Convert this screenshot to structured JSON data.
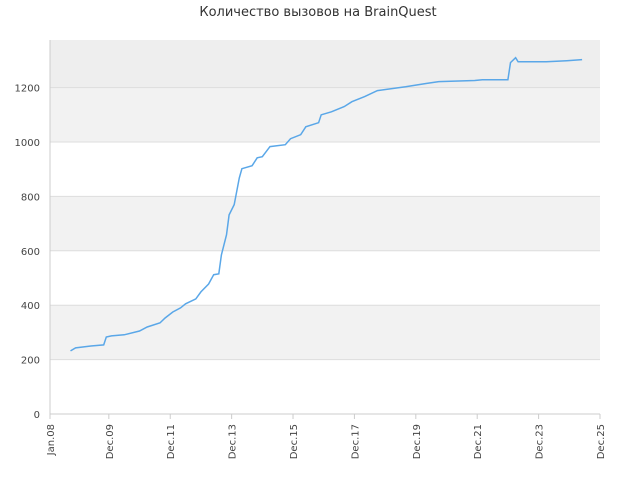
{
  "chart_data": {
    "type": "line",
    "title": "Количество вызовов на  BrainQuest",
    "x": [
      "2008-09",
      "2008-11",
      "2009-05",
      "2009-10",
      "2009-11",
      "2010-01",
      "2010-06",
      "2010-12",
      "2011-03",
      "2011-08",
      "2011-10",
      "2012-01",
      "2012-04",
      "2012-06",
      "2012-10",
      "2012-12",
      "2013-03",
      "2013-05",
      "2013-07",
      "2013-08",
      "2013-10",
      "2013-11",
      "2014-01",
      "2014-03",
      "2014-04",
      "2014-08",
      "2014-10",
      "2014-12",
      "2015-03",
      "2015-09",
      "2015-11",
      "2016-03",
      "2016-05",
      "2016-10",
      "2016-11",
      "2017-03",
      "2017-08",
      "2017-11",
      "2018-04",
      "2018-09",
      "2019-08",
      "2020-04",
      "2020-09",
      "2021-11",
      "2022-02",
      "2022-12",
      "2023-01",
      "2023-03",
      "2023-04",
      "2024-03",
      "2024-11",
      "2025-05"
    ],
    "series": [
      {
        "name": "BrainQuest",
        "color": "#5aa7e8",
        "values": [
          232,
          243,
          250,
          254,
          283,
          287,
          291,
          305,
          320,
          335,
          353,
          375,
          390,
          405,
          423,
          449,
          478,
          512,
          515,
          585,
          659,
          732,
          770,
          868,
          902,
          913,
          942,
          946,
          983,
          990,
          1012,
          1027,
          1056,
          1071,
          1100,
          1111,
          1130,
          1148,
          1167,
          1189,
          1203,
          1215,
          1222,
          1226,
          1229,
          1229,
          1292,
          1310,
          1295,
          1295,
          1299,
          1303
        ]
      }
    ],
    "xlim": [
      "2008-01",
      "2025-12"
    ],
    "xticks": [
      {
        "value": "2008-01",
        "label": "Jan.08"
      },
      {
        "value": "2009-12",
        "label": "Dec.09"
      },
      {
        "value": "2011-12",
        "label": "Dec.11"
      },
      {
        "value": "2013-12",
        "label": "Dec.13"
      },
      {
        "value": "2015-12",
        "label": "Dec.15"
      },
      {
        "value": "2017-12",
        "label": "Dec.17"
      },
      {
        "value": "2019-12",
        "label": "Dec.19"
      },
      {
        "value": "2021-12",
        "label": "Dec.21"
      },
      {
        "value": "2023-12",
        "label": "Dec.23"
      },
      {
        "value": "2025-12",
        "label": "Dec.25"
      }
    ],
    "ylim": [
      0,
      1375
    ],
    "yticks": [
      0,
      200,
      400,
      600,
      800,
      1000,
      1200
    ],
    "grid": true
  }
}
